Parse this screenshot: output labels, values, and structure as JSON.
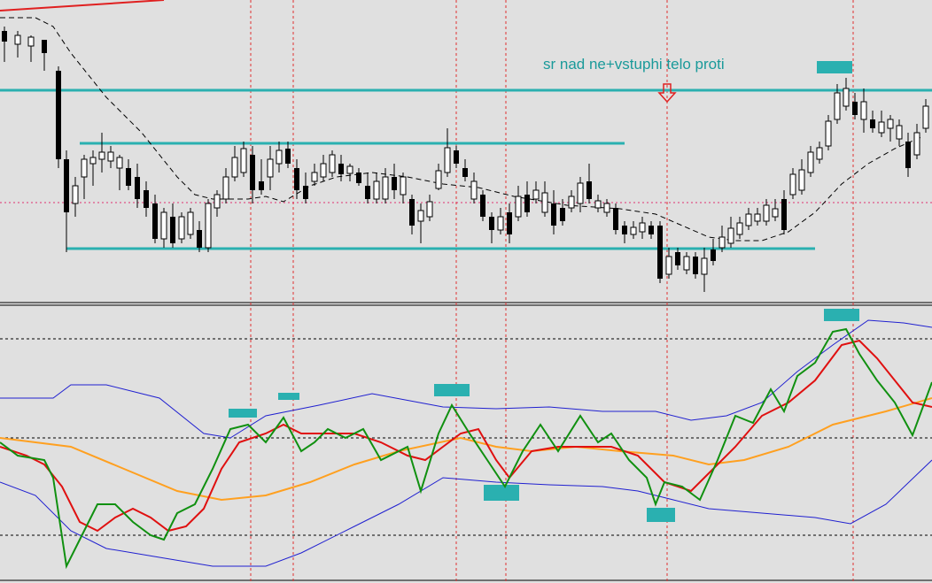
{
  "annotation": "sr nad ne+vstuphi telo proti"
}
